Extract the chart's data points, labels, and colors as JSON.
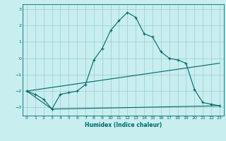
{
  "xlabel": "Humidex (Indice chaleur)",
  "background_color": "#c8eef0",
  "grid_color": "#99cccc",
  "line_color": "#006666",
  "xlim": [
    -0.5,
    23.5
  ],
  "ylim": [
    -3.5,
    3.3
  ],
  "yticks": [
    -3,
    -2,
    -1,
    0,
    1,
    2,
    3
  ],
  "xticks": [
    0,
    1,
    2,
    3,
    4,
    5,
    6,
    7,
    8,
    9,
    10,
    11,
    12,
    13,
    14,
    15,
    16,
    17,
    18,
    19,
    20,
    21,
    22,
    23
  ],
  "series": [
    {
      "x": [
        0,
        1,
        2,
        3,
        4,
        5,
        6,
        7,
        8,
        9,
        10,
        11,
        12,
        13,
        14,
        15,
        16,
        17,
        18,
        19,
        20,
        21,
        22,
        23
      ],
      "y": [
        -2.0,
        -2.2,
        -2.5,
        -3.1,
        -2.2,
        -2.1,
        -2.0,
        -1.6,
        -0.1,
        0.6,
        1.7,
        2.3,
        2.8,
        2.5,
        1.5,
        1.3,
        0.4,
        0.0,
        -0.1,
        -0.3,
        -1.9,
        -2.7,
        -2.8,
        -2.9
      ],
      "marker": true
    },
    {
      "x": [
        0,
        23
      ],
      "y": [
        -2.0,
        -0.3
      ],
      "marker": false
    },
    {
      "x": [
        0,
        3,
        23
      ],
      "y": [
        -2.0,
        -3.1,
        -2.9
      ],
      "marker": false
    }
  ]
}
